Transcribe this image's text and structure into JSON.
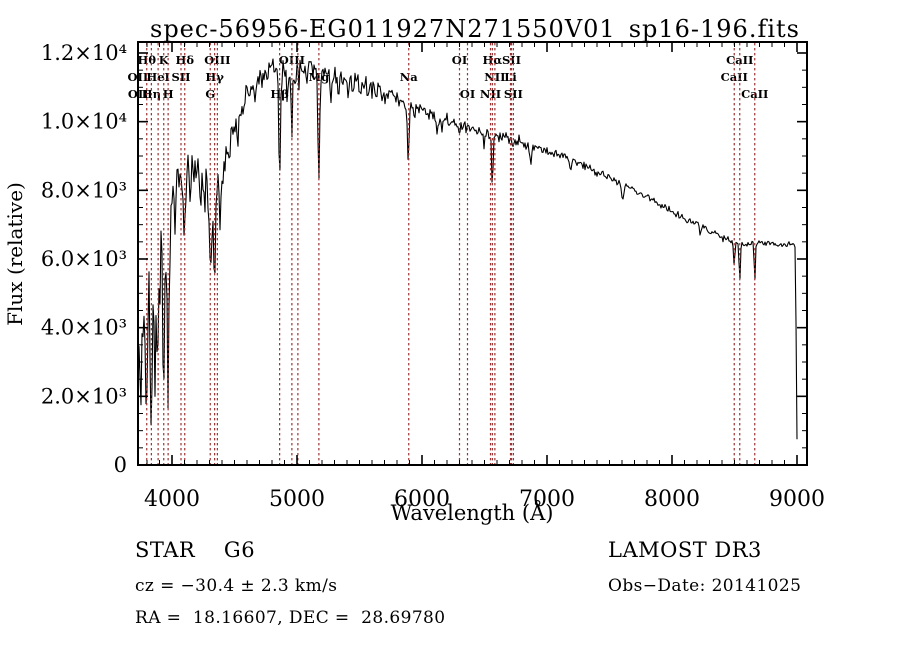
{
  "title": "spec-56956-EG011927N271550V01_sp16-196.fits",
  "chart": {
    "xlabel": "Wavelength (Å)",
    "ylabel": "Flux (relative)",
    "colors": {
      "spectrum": "#000000",
      "marker_line": "#9c3232",
      "axis": "#000000"
    }
  },
  "annotations": {
    "class_label": "STAR    G6",
    "cz": "cz = −30.4 ± 2.3 km/s",
    "radec": "RA =  18.16607, DEC =  28.69780",
    "survey": "LAMOST DR3",
    "obs_date": "Obs−Date: 20141025"
  },
  "chart_data": {
    "type": "line",
    "title": "spec-56956-EG011927N271550V01_sp16-196.fits",
    "xlabel": "Wavelength (Å)",
    "ylabel": "Flux (relative)",
    "xlim": [
      3728,
      9080
    ],
    "ylim": [
      0,
      12320
    ],
    "grid": false,
    "x_ticks": [
      {
        "value": 4000,
        "label": "4000"
      },
      {
        "value": 5000,
        "label": "5000"
      },
      {
        "value": 6000,
        "label": "6000"
      },
      {
        "value": 7000,
        "label": "7000"
      },
      {
        "value": 8000,
        "label": "8000"
      },
      {
        "value": 9000,
        "label": "9000"
      }
    ],
    "x_minor_step": 100,
    "y_ticks": [
      {
        "value": 0,
        "label": "0"
      },
      {
        "value": 2000,
        "label": "2.0×10³"
      },
      {
        "value": 4000,
        "label": "4.0×10³"
      },
      {
        "value": 6000,
        "label": "6.0×10³"
      },
      {
        "value": 8000,
        "label": "8.0×10³"
      },
      {
        "value": 10000,
        "label": "1.0×10⁴"
      },
      {
        "value": 12000,
        "label": "1.2×10⁴"
      }
    ],
    "y_minor_step": 500,
    "series_name": "spectrum",
    "continuum": [
      [
        3728,
        2800
      ],
      [
        3744,
        3800
      ],
      [
        3760,
        4100
      ],
      [
        3776,
        4300
      ],
      [
        3792,
        4000
      ],
      [
        3808,
        4100
      ],
      [
        3824,
        4200
      ],
      [
        3840,
        4300
      ],
      [
        3856,
        4500
      ],
      [
        3872,
        4700
      ],
      [
        3888,
        5000
      ],
      [
        3904,
        5100
      ],
      [
        3920,
        5000
      ],
      [
        3936,
        5100
      ],
      [
        3952,
        5400
      ],
      [
        3968,
        5600
      ],
      [
        3984,
        6400
      ],
      [
        4000,
        7300
      ],
      [
        4016,
        7800
      ],
      [
        4032,
        8000
      ],
      [
        4048,
        8150
      ],
      [
        4080,
        8400
      ],
      [
        4120,
        8600
      ],
      [
        4160,
        8500
      ],
      [
        4200,
        8450
      ],
      [
        4240,
        8350
      ],
      [
        4270,
        8150
      ],
      [
        4300,
        7600
      ],
      [
        4330,
        7300
      ],
      [
        4360,
        7900
      ],
      [
        4400,
        8700
      ],
      [
        4450,
        9400
      ],
      [
        4500,
        9900
      ],
      [
        4550,
        10300
      ],
      [
        4600,
        10700
      ],
      [
        4650,
        11000
      ],
      [
        4700,
        11250
      ],
      [
        4750,
        11400
      ],
      [
        4800,
        11450
      ],
      [
        4850,
        11500
      ],
      [
        4900,
        11400
      ],
      [
        4950,
        11350
      ],
      [
        5000,
        11450
      ],
      [
        5050,
        11500
      ],
      [
        5100,
        11450
      ],
      [
        5150,
        11400
      ],
      [
        5200,
        11450
      ],
      [
        5250,
        11500
      ],
      [
        5300,
        11350
      ],
      [
        5350,
        11200
      ],
      [
        5400,
        11150
      ],
      [
        5450,
        11100
      ],
      [
        5500,
        11050
      ],
      [
        5550,
        11000
      ],
      [
        5600,
        10950
      ],
      [
        5650,
        10900
      ],
      [
        5700,
        10850
      ],
      [
        5750,
        10750
      ],
      [
        5800,
        10650
      ],
      [
        5850,
        10550
      ],
      [
        5900,
        10450
      ],
      [
        5950,
        10350
      ],
      [
        6000,
        10300
      ],
      [
        6050,
        10200
      ],
      [
        6100,
        10100
      ],
      [
        6150,
        10050
      ],
      [
        6200,
        10000
      ],
      [
        6250,
        9950
      ],
      [
        6300,
        9900
      ],
      [
        6350,
        9800
      ],
      [
        6400,
        9750
      ],
      [
        6450,
        9720
      ],
      [
        6500,
        9700
      ],
      [
        6550,
        9620
      ],
      [
        6600,
        9550
      ],
      [
        6650,
        9520
      ],
      [
        6700,
        9500
      ],
      [
        6750,
        9450
      ],
      [
        6800,
        9400
      ],
      [
        6900,
        9280
      ],
      [
        7000,
        9150
      ],
      [
        7100,
        9020
      ],
      [
        7200,
        8900
      ],
      [
        7300,
        8720
      ],
      [
        7400,
        8550
      ],
      [
        7500,
        8380
      ],
      [
        7600,
        8200
      ],
      [
        7700,
        8000
      ],
      [
        7800,
        7800
      ],
      [
        7900,
        7600
      ],
      [
        8000,
        7400
      ],
      [
        8100,
        7200
      ],
      [
        8200,
        7000
      ],
      [
        8300,
        6820
      ],
      [
        8400,
        6650
      ],
      [
        8500,
        6520
      ],
      [
        8550,
        6450
      ],
      [
        8600,
        6430
      ],
      [
        8650,
        6480
      ],
      [
        8700,
        6520
      ],
      [
        8750,
        6470
      ],
      [
        8800,
        6440
      ],
      [
        8850,
        6420
      ],
      [
        8900,
        6400
      ],
      [
        8950,
        6420
      ],
      [
        8985,
        6400
      ],
      [
        8992,
        4200
      ],
      [
        8997,
        1400
      ],
      [
        9002,
        350
      ]
    ],
    "absorption_lines": [
      [
        3750,
        1800,
        5
      ],
      [
        3798,
        2400,
        6
      ],
      [
        3835,
        2300,
        6
      ],
      [
        3862,
        1400,
        5
      ],
      [
        3889,
        2500,
        6
      ],
      [
        3934,
        2800,
        7
      ],
      [
        3969,
        2800,
        7
      ],
      [
        4026,
        1000,
        5
      ],
      [
        4102,
        1600,
        7
      ],
      [
        4144,
        800,
        5
      ],
      [
        4227,
        1100,
        5
      ],
      [
        4260,
        800,
        5
      ],
      [
        4307,
        1900,
        9
      ],
      [
        4341,
        2000,
        7
      ],
      [
        4383,
        1300,
        6
      ],
      [
        4405,
        900,
        5
      ],
      [
        4458,
        700,
        5
      ],
      [
        4531,
        700,
        5
      ],
      [
        4668,
        600,
        5
      ],
      [
        4861,
        3200,
        6
      ],
      [
        4920,
        700,
        4
      ],
      [
        4957,
        2200,
        4
      ],
      [
        5015,
        800,
        4
      ],
      [
        5175,
        3300,
        7
      ],
      [
        5270,
        1000,
        5
      ],
      [
        5332,
        600,
        4
      ],
      [
        5406,
        500,
        4
      ],
      [
        5890,
        1750,
        6
      ],
      [
        6122,
        400,
        4
      ],
      [
        6162,
        350,
        4
      ],
      [
        6300,
        250,
        4
      ],
      [
        6495,
        400,
        4
      ],
      [
        6563,
        1650,
        5
      ],
      [
        6870,
        550,
        7
      ],
      [
        7190,
        350,
        6
      ],
      [
        7605,
        500,
        9
      ],
      [
        8227,
        250,
        5
      ],
      [
        8498,
        820,
        5
      ],
      [
        8542,
        1150,
        5
      ],
      [
        8662,
        1050,
        5
      ]
    ],
    "noise_envelope": [
      [
        3728,
        1250
      ],
      [
        3950,
        1250
      ],
      [
        4000,
        650
      ],
      [
        4050,
        480
      ],
      [
        4400,
        420
      ],
      [
        4700,
        330
      ],
      [
        5000,
        300
      ],
      [
        5400,
        260
      ],
      [
        5700,
        210
      ],
      [
        6000,
        190
      ],
      [
        6500,
        150
      ],
      [
        7000,
        120
      ],
      [
        7500,
        100
      ],
      [
        8000,
        90
      ],
      [
        8600,
        80
      ],
      [
        9002,
        60
      ]
    ],
    "spectral_markers": [
      {
        "label": "OII",
        "wavelength": 3727,
        "row": 2
      },
      {
        "label": "OII",
        "wavelength": 3730,
        "row": 3
      },
      {
        "label": "Hθ",
        "wavelength": 3798,
        "row": 1
      },
      {
        "label": "Hη",
        "wavelength": 3835,
        "row": 3
      },
      {
        "label": "HeI",
        "wavelength": 3889,
        "row": 2
      },
      {
        "label": "K",
        "wavelength": 3934,
        "row": 1
      },
      {
        "label": "H",
        "wavelength": 3969,
        "row": 3
      },
      {
        "label": "SII",
        "wavelength": 4072,
        "row": 2
      },
      {
        "label": "Hδ",
        "wavelength": 4102,
        "row": 1
      },
      {
        "label": "G",
        "wavelength": 4306,
        "row": 3
      },
      {
        "label": "Hγ",
        "wavelength": 4341,
        "row": 2
      },
      {
        "label": "OIII",
        "wavelength": 4363,
        "row": 1
      },
      {
        "label": "Hβ",
        "wavelength": 4861,
        "row": 3
      },
      {
        "label": "OIII",
        "wavelength": 4959,
        "row": 1
      },
      {
        "label": "",
        "wavelength": 5007,
        "row": 1
      },
      {
        "label": "Mg",
        "wavelength": 5175,
        "row": 2
      },
      {
        "label": "Na",
        "wavelength": 5894,
        "row": 2
      },
      {
        "label": "OI",
        "wavelength": 6300,
        "row": 1
      },
      {
        "label": "OI",
        "wavelength": 6364,
        "row": 3
      },
      {
        "label": "NII",
        "wavelength": 6548,
        "row": 3
      },
      {
        "label": "Hα",
        "wavelength": 6563,
        "row": 1
      },
      {
        "label": "NII",
        "wavelength": 6583,
        "row": 2
      },
      {
        "label": "Li",
        "wavelength": 6708,
        "row": 2
      },
      {
        "label": "SII",
        "wavelength": 6716,
        "row": 1
      },
      {
        "label": "SII",
        "wavelength": 6731,
        "row": 3
      },
      {
        "label": "CaII",
        "wavelength": 8498,
        "row": 2
      },
      {
        "label": "CaII",
        "wavelength": 8542,
        "row": 1
      },
      {
        "label": "CaII",
        "wavelength": 8662,
        "row": 3
      }
    ]
  }
}
